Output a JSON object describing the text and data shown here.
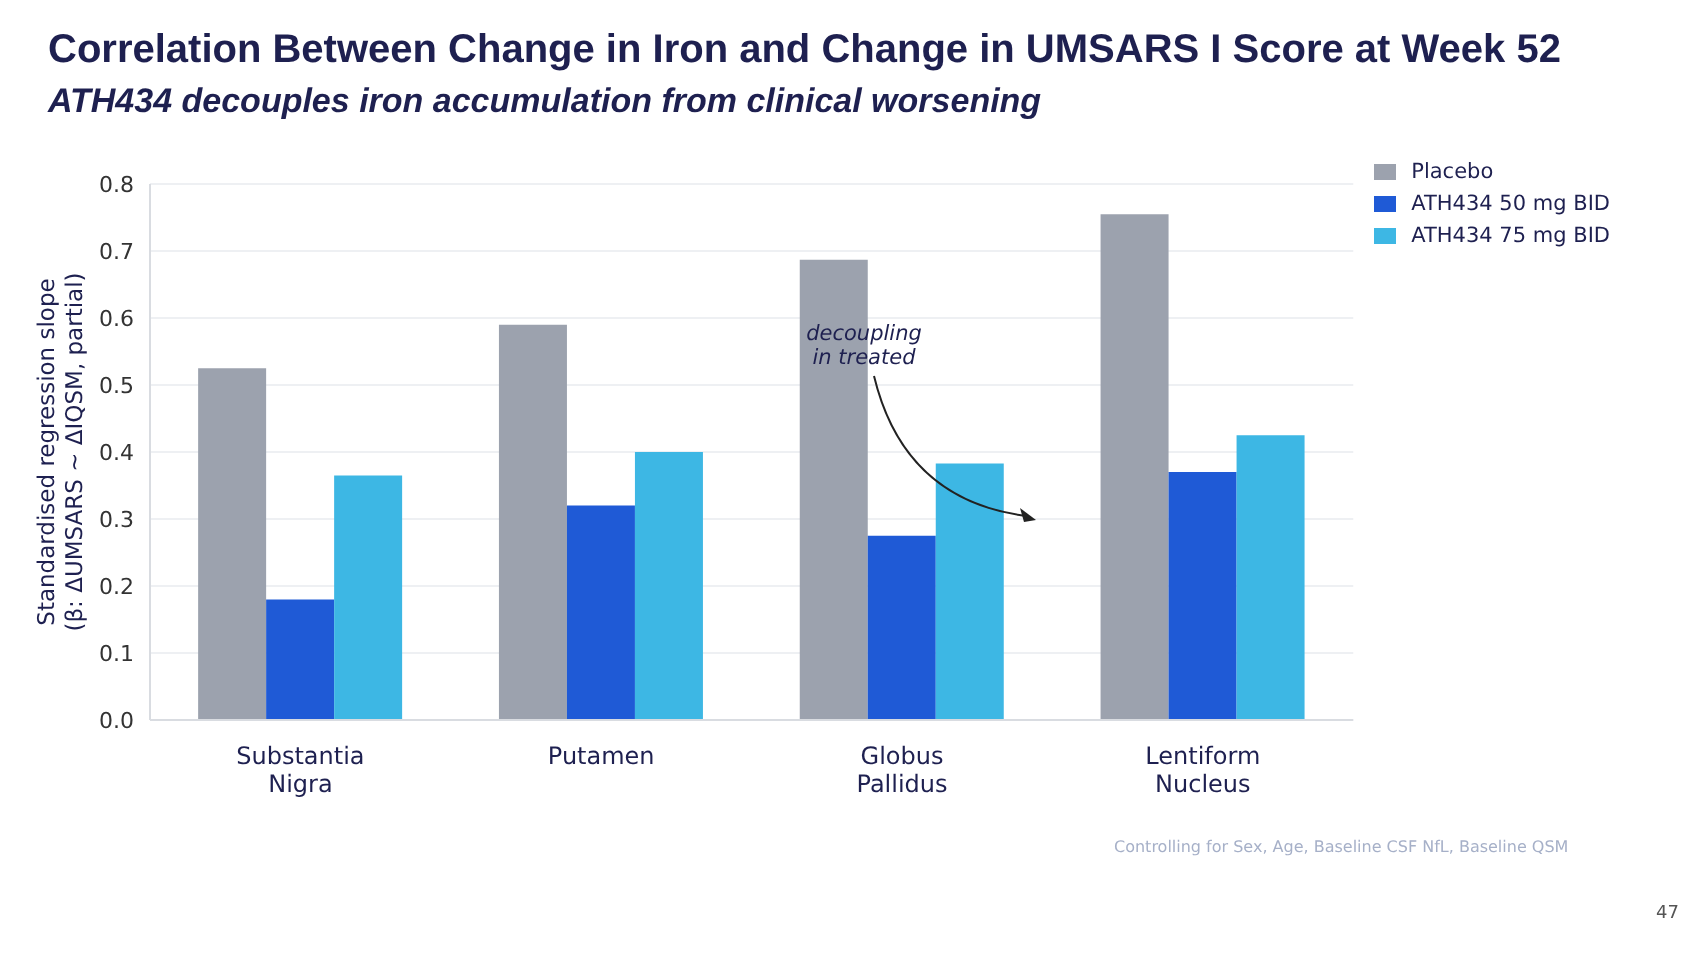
{
  "chart_data": {
    "type": "bar",
    "title": "Correlation Between Change in Iron and Change in UMSARS I Score at Week 52",
    "subtitle": "ATH434 decouples iron accumulation from clinical worsening",
    "ylabel": "Standardised regression slope\n(β: ΔUMSARS ~ ΔIQSM, partial)",
    "categories": [
      "Substantia Nigra",
      "Putamen",
      "Globus Pallidus",
      "Lentiform Nucleus"
    ],
    "series": [
      {
        "name": "Placebo",
        "color": "#9ca2ae",
        "values": [
          0.525,
          0.59,
          0.687,
          0.755
        ]
      },
      {
        "name": "ATH434 50 mg BID",
        "color": "#1f5ad6",
        "values": [
          0.18,
          0.32,
          0.275,
          0.37
        ]
      },
      {
        "name": "ATH434 75 mg BID",
        "color": "#3db7e4",
        "values": [
          0.365,
          0.4,
          0.383,
          0.425
        ]
      }
    ],
    "ylim": [
      0,
      0.8
    ],
    "yticks": [
      {
        "value": 0,
        "label": "0.0"
      },
      0.1,
      0.2,
      0.3,
      0.4,
      0.5,
      0.6,
      0.7,
      0.8
    ],
    "grid": "y",
    "legend": "top right",
    "annotations": [
      "decoupling\nin treated",
      "Controlling for Sex, Age, Baseline CSF NfL, Baseline QSM",
      "47"
    ]
  }
}
